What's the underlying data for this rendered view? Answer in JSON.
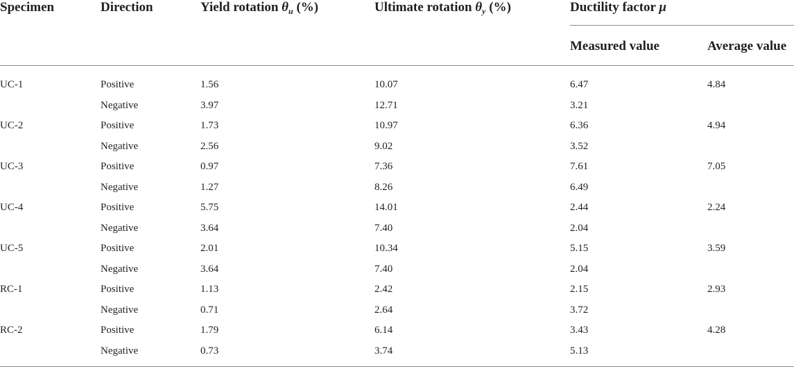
{
  "table": {
    "headers": {
      "specimen": "Specimen",
      "direction": "Direction",
      "yield_prefix": "Yield rotation ",
      "yield_symbol": "θ",
      "yield_sub": "u",
      "yield_suffix": " (%)",
      "ultimate_prefix": "Ultimate rotation ",
      "ultimate_symbol": "θ",
      "ultimate_sub": "y",
      "ultimate_suffix": " (%)",
      "ductility_prefix": "Ductility factor ",
      "ductility_symbol": "μ",
      "measured": "Measured value",
      "average": "Average value"
    },
    "rows": [
      {
        "specimen": "UC-1",
        "direction": "Positive",
        "yield": "1.56",
        "ultimate": "10.07",
        "measured": "6.47",
        "average": "4.84"
      },
      {
        "specimen": "",
        "direction": "Negative",
        "yield": "3.97",
        "ultimate": "12.71",
        "measured": "3.21",
        "average": ""
      },
      {
        "specimen": "UC-2",
        "direction": "Positive",
        "yield": "1.73",
        "ultimate": "10.97",
        "measured": "6.36",
        "average": "4.94"
      },
      {
        "specimen": "",
        "direction": "Negative",
        "yield": "2.56",
        "ultimate": "9.02",
        "measured": "3.52",
        "average": ""
      },
      {
        "specimen": "UC-3",
        "direction": "Positive",
        "yield": "0.97",
        "ultimate": "7.36",
        "measured": "7.61",
        "average": "7.05"
      },
      {
        "specimen": "",
        "direction": "Negative",
        "yield": "1.27",
        "ultimate": "8.26",
        "measured": "6.49",
        "average": ""
      },
      {
        "specimen": "UC-4",
        "direction": "Positive",
        "yield": "5.75",
        "ultimate": "14.01",
        "measured": "2.44",
        "average": "2.24"
      },
      {
        "specimen": "",
        "direction": "Negative",
        "yield": "3.64",
        "ultimate": "7.40",
        "measured": "2.04",
        "average": ""
      },
      {
        "specimen": "UC-5",
        "direction": "Positive",
        "yield": "2.01",
        "ultimate": "10.34",
        "measured": "5.15",
        "average": "3.59"
      },
      {
        "specimen": "",
        "direction": "Negative",
        "yield": "3.64",
        "ultimate": "7.40",
        "measured": "2.04",
        "average": ""
      },
      {
        "specimen": "RC-1",
        "direction": "Positive",
        "yield": "1.13",
        "ultimate": "2.42",
        "measured": "2.15",
        "average": "2.93"
      },
      {
        "specimen": "",
        "direction": "Negative",
        "yield": "0.71",
        "ultimate": "2.64",
        "measured": "3.72",
        "average": ""
      },
      {
        "specimen": "RC-2",
        "direction": "Positive",
        "yield": "1.79",
        "ultimate": "6.14",
        "measured": "3.43",
        "average": "4.28"
      },
      {
        "specimen": "",
        "direction": "Negative",
        "yield": "0.73",
        "ultimate": "3.74",
        "measured": "5.13",
        "average": ""
      }
    ]
  }
}
